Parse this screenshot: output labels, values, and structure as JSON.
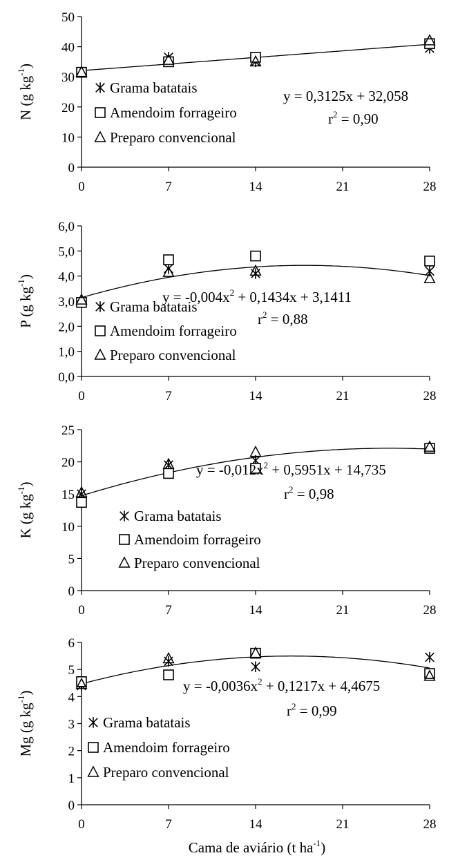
{
  "figure": {
    "xlabel": "Cama de aviário (t ha",
    "xlabel_sup": "-1",
    "xlabel_end": ")"
  },
  "chart_data": [
    {
      "type": "scatter",
      "ylabel": "N (g kg",
      "ylabel_sup": "-1",
      "ylabel_end": ")",
      "ylim": [
        0,
        50
      ],
      "yticks": [
        0,
        10,
        20,
        30,
        40,
        50
      ],
      "ytick_labels": [
        "0",
        "10",
        "20",
        "30",
        "40",
        "50"
      ],
      "xlim": [
        0,
        28
      ],
      "xticks": [
        0,
        7,
        14,
        21,
        28
      ],
      "xtick_labels": [
        "0",
        "7",
        "14",
        "21",
        "28"
      ],
      "x": [
        0,
        7,
        14,
        28
      ],
      "series": [
        {
          "name": "Grama batatais",
          "marker": "asterisk",
          "values": [
            31.5,
            36.5,
            35.0,
            39.5
          ]
        },
        {
          "name": "Amendoim forrageiro",
          "marker": "square",
          "values": [
            31.5,
            35.0,
            36.5,
            41.0
          ]
        },
        {
          "name": "Preparo convencional",
          "marker": "triangle",
          "values": [
            31.5,
            35.5,
            35.0,
            42.0
          ]
        }
      ],
      "fit": {
        "a": 0,
        "b": 0.3125,
        "c": 32.058
      },
      "equation": {
        "pre": "y = 0,3125x + 32,058"
      },
      "r2": {
        "r": "r",
        "sup": "2",
        "text": " = 0,90"
      },
      "legend_position": "left"
    },
    {
      "type": "scatter",
      "ylabel": "P (g kg",
      "ylabel_sup": "-1",
      "ylabel_end": ")",
      "ylim": [
        0,
        6
      ],
      "yticks": [
        0,
        1,
        2,
        3,
        4,
        5,
        6
      ],
      "ytick_labels": [
        "0,0",
        "1,0",
        "2,0",
        "3,0",
        "4,0",
        "5,0",
        "6,0"
      ],
      "xlim": [
        0,
        28
      ],
      "xticks": [
        0,
        7,
        14,
        21,
        28
      ],
      "xtick_labels": [
        "0",
        "7",
        "14",
        "21",
        "28"
      ],
      "x": [
        0,
        7,
        14,
        28
      ],
      "series": [
        {
          "name": "Grama batatais",
          "marker": "asterisk",
          "values": [
            2.95,
            4.3,
            4.1,
            4.2
          ]
        },
        {
          "name": "Amendoim forrageiro",
          "marker": "square",
          "values": [
            2.95,
            4.65,
            4.8,
            4.6
          ]
        },
        {
          "name": "Preparo convencional",
          "marker": "triangle",
          "values": [
            3.05,
            4.15,
            4.2,
            3.9
          ]
        }
      ],
      "fit": {
        "a": -0.004,
        "b": 0.1434,
        "c": 3.1411
      },
      "equation": {
        "pre": "y = -0,004x",
        "sup": "2",
        "post": " + 0,1434x + 3,1411"
      },
      "r2": {
        "r": "r",
        "sup": "2",
        "text": " = 0,88"
      },
      "legend_position": "left"
    },
    {
      "type": "scatter",
      "ylabel": "K (g kg",
      "ylabel_sup": "-1",
      "ylabel_end": ")",
      "ylim": [
        0,
        25
      ],
      "yticks": [
        0,
        5,
        10,
        15,
        20,
        25
      ],
      "ytick_labels": [
        "0",
        "5",
        "10",
        "15",
        "20",
        "25"
      ],
      "xlim": [
        0,
        28
      ],
      "xticks": [
        0,
        7,
        14,
        21,
        28
      ],
      "xtick_labels": [
        "0",
        "7",
        "14",
        "21",
        "28"
      ],
      "x": [
        0,
        7,
        14,
        28
      ],
      "series": [
        {
          "name": "Grama batatais",
          "marker": "asterisk",
          "values": [
            15.0,
            19.5,
            20.2,
            22.2
          ]
        },
        {
          "name": "Amendoim forrageiro",
          "marker": "square",
          "values": [
            13.7,
            18.2,
            19.0,
            22.1
          ]
        },
        {
          "name": "Preparo convencional",
          "marker": "triangle",
          "values": [
            15.2,
            19.6,
            21.5,
            22.3
          ]
        }
      ],
      "fit": {
        "a": -0.012,
        "b": 0.5951,
        "c": 14.735
      },
      "equation": {
        "pre": "y = -0,012x",
        "sup": "2",
        "post": " + 0,5951x + 14,735"
      },
      "r2": {
        "r": "r",
        "sup": "2",
        "text": " = 0,98"
      },
      "legend_position": "left"
    },
    {
      "type": "scatter",
      "ylabel": "Mg (g kg",
      "ylabel_sup": "-1",
      "ylabel_end": ")",
      "ylim": [
        0,
        6
      ],
      "yticks": [
        0,
        1,
        2,
        3,
        4,
        5,
        6
      ],
      "ytick_labels": [
        "0",
        "1",
        "2",
        "3",
        "4",
        "5",
        "6"
      ],
      "xlim": [
        0,
        28
      ],
      "xticks": [
        0,
        7,
        14,
        21,
        28
      ],
      "xtick_labels": [
        "0",
        "7",
        "14",
        "21",
        "28"
      ],
      "x": [
        0,
        7,
        14,
        28
      ],
      "series": [
        {
          "name": "Grama batatais",
          "marker": "asterisk",
          "values": [
            4.4,
            5.3,
            5.1,
            5.45
          ]
        },
        {
          "name": "Amendoim forrageiro",
          "marker": "square",
          "values": [
            4.55,
            4.8,
            5.6,
            4.85
          ]
        },
        {
          "name": "Preparo convencional",
          "marker": "triangle",
          "values": [
            4.45,
            5.4,
            5.6,
            4.75
          ]
        }
      ],
      "fit": {
        "a": -0.0036,
        "b": 0.1217,
        "c": 4.4675
      },
      "equation": {
        "pre": "y = -0,0036x",
        "sup": "2",
        "post": " + 0,1217x + 4,4675"
      },
      "r2": {
        "r": "r",
        "sup": "2",
        "text": " = 0,99"
      },
      "legend_position": "left"
    }
  ]
}
